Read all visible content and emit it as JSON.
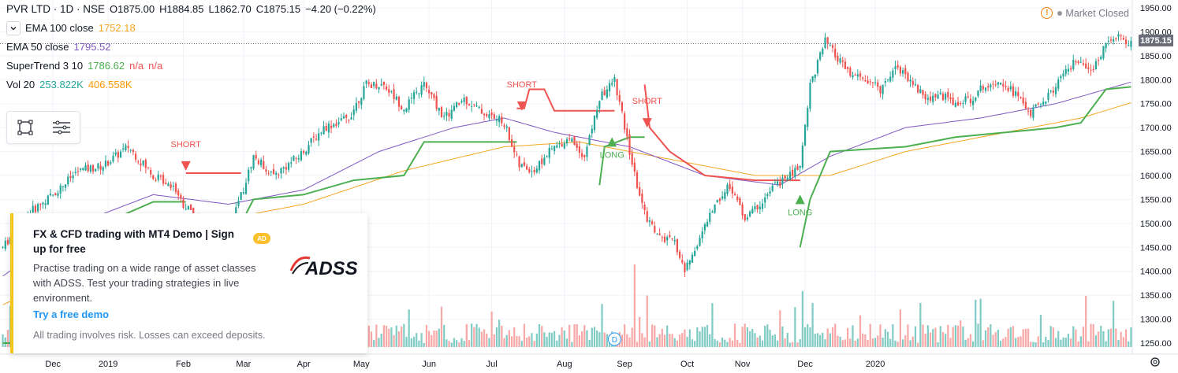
{
  "header": {
    "symbol": "PVR LTD · 1D · NSE",
    "open": "O1875.00",
    "high": "H1884.85",
    "low": "L1862.70",
    "close": "C1875.15",
    "change": "−4.20 (−0.22%)",
    "market_status": "Market Closed"
  },
  "indicators": [
    {
      "label": "EMA 100 close",
      "value": "1752.18",
      "color": "#f5a623"
    },
    {
      "label": "EMA 50 close",
      "value": "1795.52",
      "color": "#7e57c2"
    },
    {
      "label": "SuperTrend 3 10",
      "value": "1786.62",
      "value2": "n/a",
      "value3": "n/a",
      "color": "#4caf50",
      "color2": "#ef5350"
    },
    {
      "label": "Vol 20",
      "value": "253.822K",
      "value2": "406.558K",
      "color": "#26a69a",
      "color2": "#ff9800"
    }
  ],
  "current_price": "1875.15",
  "ad": {
    "badge": "AD",
    "title": "FX & CFD trading with MT4 Demo | Sign up for free",
    "body": "Practise trading on a wide range of asset classes with ADSS. Test your trading strategies in live environment.",
    "link": "Try a free demo",
    "note": "All trading involves risk. Losses can exceed deposits.",
    "logo_text": "ADSS"
  },
  "colors": {
    "up": "#26a69a",
    "down": "#ef5350",
    "vol_up": "#80cbc4",
    "vol_down": "#f7a8a7",
    "long": "#4caf50",
    "short": "#ef5350",
    "ema100": "#f5a623",
    "ema50": "#7e57c2",
    "text": "#131722"
  },
  "chart_data": {
    "type": "candlestick",
    "x_labels": [
      "Dec",
      "2019",
      "Feb",
      "Mar",
      "Apr",
      "May",
      "Jun",
      "Jul",
      "Aug",
      "Sep",
      "Oct",
      "Nov",
      "Dec",
      "2020"
    ],
    "y_ticks": [
      1250,
      1300,
      1350,
      1400,
      1450,
      1500,
      1550,
      1600,
      1650,
      1700,
      1750,
      1800,
      1850,
      1900,
      1950
    ],
    "ylim": [
      1230,
      1960
    ],
    "price_keypoints": [
      [
        0,
        1450
      ],
      [
        10,
        1520
      ],
      [
        20,
        1560
      ],
      [
        30,
        1610
      ],
      [
        40,
        1620
      ],
      [
        50,
        1660
      ],
      [
        60,
        1600
      ],
      [
        68,
        1580
      ],
      [
        72,
        1540
      ],
      [
        80,
        1500
      ],
      [
        88,
        1480
      ],
      [
        94,
        1540
      ],
      [
        100,
        1640
      ],
      [
        108,
        1600
      ],
      [
        118,
        1640
      ],
      [
        128,
        1700
      ],
      [
        138,
        1720
      ],
      [
        145,
        1790
      ],
      [
        152,
        1790
      ],
      [
        160,
        1740
      ],
      [
        168,
        1790
      ],
      [
        176,
        1720
      ],
      [
        184,
        1760
      ],
      [
        192,
        1730
      ],
      [
        200,
        1710
      ],
      [
        206,
        1620
      ],
      [
        212,
        1610
      ],
      [
        218,
        1650
      ],
      [
        226,
        1680
      ],
      [
        232,
        1640
      ],
      [
        238,
        1760
      ],
      [
        244,
        1800
      ],
      [
        248,
        1700
      ],
      [
        252,
        1600
      ],
      [
        256,
        1520
      ],
      [
        262,
        1470
      ],
      [
        268,
        1460
      ],
      [
        272,
        1400
      ],
      [
        278,
        1470
      ],
      [
        284,
        1540
      ],
      [
        290,
        1580
      ],
      [
        296,
        1510
      ],
      [
        302,
        1540
      ],
      [
        308,
        1580
      ],
      [
        314,
        1600
      ],
      [
        318,
        1620
      ],
      [
        322,
        1790
      ],
      [
        328,
        1880
      ],
      [
        332,
        1850
      ],
      [
        338,
        1810
      ],
      [
        344,
        1800
      ],
      [
        350,
        1780
      ],
      [
        356,
        1830
      ],
      [
        362,
        1800
      ],
      [
        368,
        1760
      ],
      [
        374,
        1770
      ],
      [
        380,
        1750
      ],
      [
        386,
        1760
      ],
      [
        392,
        1790
      ],
      [
        398,
        1800
      ],
      [
        404,
        1770
      ],
      [
        410,
        1730
      ],
      [
        416,
        1760
      ],
      [
        422,
        1800
      ],
      [
        428,
        1840
      ],
      [
        434,
        1810
      ],
      [
        440,
        1880
      ],
      [
        444,
        1890
      ],
      [
        450,
        1875
      ]
    ],
    "ema50_keypoints": [
      [
        0,
        1390
      ],
      [
        30,
        1500
      ],
      [
        60,
        1560
      ],
      [
        90,
        1540
      ],
      [
        120,
        1570
      ],
      [
        150,
        1650
      ],
      [
        180,
        1700
      ],
      [
        200,
        1720
      ],
      [
        220,
        1690
      ],
      [
        250,
        1660
      ],
      [
        280,
        1600
      ],
      [
        310,
        1580
      ],
      [
        330,
        1640
      ],
      [
        360,
        1700
      ],
      [
        390,
        1720
      ],
      [
        420,
        1750
      ],
      [
        450,
        1795
      ]
    ],
    "ema100_keypoints": [
      [
        0,
        1330
      ],
      [
        40,
        1430
      ],
      [
        80,
        1500
      ],
      [
        120,
        1540
      ],
      [
        160,
        1610
      ],
      [
        200,
        1660
      ],
      [
        230,
        1670
      ],
      [
        260,
        1640
      ],
      [
        300,
        1600
      ],
      [
        330,
        1600
      ],
      [
        360,
        1650
      ],
      [
        400,
        1690
      ],
      [
        430,
        1720
      ],
      [
        450,
        1752
      ]
    ],
    "supertrend_segments": [
      {
        "trend": "long",
        "points": [
          [
            0,
            1250
          ],
          [
            5,
            1250
          ],
          [
            5,
            1420
          ],
          [
            60,
            1545
          ],
          [
            73,
            1545
          ]
        ]
      },
      {
        "trend": "short",
        "points": [
          [
            73,
            1605
          ],
          [
            95,
            1605
          ]
        ]
      },
      {
        "trend": "long",
        "points": [
          [
            95,
            1500
          ],
          [
            100,
            1550
          ],
          [
            120,
            1560
          ],
          [
            140,
            1590
          ],
          [
            160,
            1600
          ],
          [
            168,
            1670
          ],
          [
            200,
            1670
          ],
          [
            205,
            1670
          ]
        ]
      },
      {
        "trend": "short",
        "points": [
          [
            205,
            1740
          ],
          [
            208,
            1740
          ],
          [
            210,
            1780
          ],
          [
            216,
            1780
          ],
          [
            220,
            1735
          ],
          [
            240,
            1735
          ],
          [
            244,
            1735
          ]
        ]
      },
      {
        "trend": "long",
        "points": [
          [
            238,
            1580
          ],
          [
            240,
            1660
          ],
          [
            250,
            1680
          ],
          [
            256,
            1680
          ]
        ]
      },
      {
        "trend": "short",
        "points": [
          [
            256,
            1790
          ],
          [
            258,
            1700
          ],
          [
            266,
            1650
          ],
          [
            280,
            1600
          ],
          [
            300,
            1590
          ],
          [
            318,
            1590
          ]
        ]
      },
      {
        "trend": "long",
        "points": [
          [
            318,
            1450
          ],
          [
            322,
            1550
          ],
          [
            330,
            1650
          ],
          [
            360,
            1660
          ],
          [
            380,
            1680
          ],
          [
            400,
            1690
          ],
          [
            420,
            1700
          ],
          [
            430,
            1710
          ],
          [
            440,
            1780
          ],
          [
            450,
            1785
          ]
        ]
      }
    ],
    "signals": [
      {
        "type": "SHORT",
        "bar": 73,
        "price": 1610
      },
      {
        "type": "SHORT",
        "bar": 207,
        "price": 1735
      },
      {
        "type": "LONG",
        "bar": 243,
        "price": 1680
      },
      {
        "type": "SHORT",
        "bar": 257,
        "price": 1700
      },
      {
        "type": "LONG",
        "bar": 318,
        "price": 1560
      }
    ],
    "markers": [
      {
        "type": "dividend",
        "label": "D",
        "bar": 244
      }
    ]
  }
}
